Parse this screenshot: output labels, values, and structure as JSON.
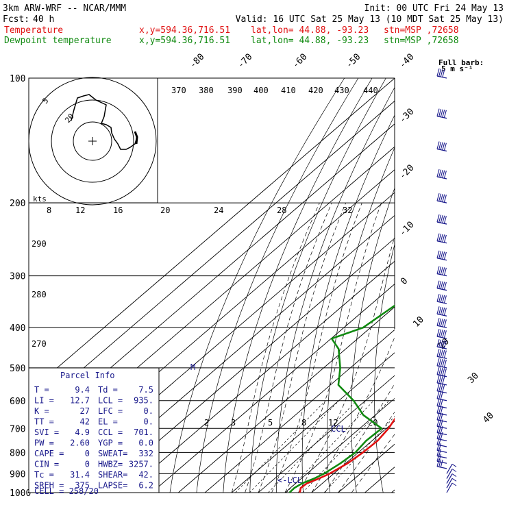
{
  "header": {
    "model": "3km ARW-WRF -- NCAR/MMM",
    "init": "Init: 00 UTC Fri 24 May 13",
    "fcst_label": "Fcst:",
    "fcst_value": "40 h",
    "valid": "Valid: 16 UTC Sat 25 May 13 (10 MDT Sat 25 May 13)"
  },
  "colors": {
    "temperature": "#e01010",
    "dewpoint": "#108a10",
    "index_text": "#1a1a8c",
    "barb": "#1a1a8c"
  },
  "legend": [
    {
      "name": "Temperature",
      "xy": "x,y=594.36,716.51",
      "latlon": "lat,lon= 44.88, -93.23",
      "stn": "stn=MSP ,72658"
    },
    {
      "name": "Dewpoint temperature",
      "xy": "x,y=594.36,716.51",
      "latlon": "lat,lon= 44.88, -93.23",
      "stn": "stn=MSP ,72658"
    }
  ],
  "barb_legend": {
    "title": "Full barb:",
    "value": "5 m s⁻¹"
  },
  "hodograph": {
    "units": "kts",
    "ring_labels": [
      "20",
      "5"
    ]
  },
  "parcel_info": {
    "title": "Parcel Info",
    "rows": [
      [
        "T  =",
        "9.4",
        "Td =",
        "7.5"
      ],
      [
        "LI =",
        "12.7",
        "LCL =",
        "935."
      ],
      [
        "K  =",
        "27",
        "LFC =",
        "0."
      ],
      [
        "TT =",
        "42",
        "EL  =",
        "0."
      ],
      [
        "SVI =",
        "4.9",
        "CCL =",
        "701."
      ],
      [
        "PW =",
        "2.60",
        "YGP =",
        "0.0"
      ],
      [
        "CAPE =",
        "0",
        "SWEAT=",
        "332"
      ],
      [
        "CIN  =",
        "0",
        "HWBZ=",
        "3257."
      ],
      [
        "Tc =",
        "31.4",
        "SHEAR=",
        "42."
      ],
      [
        "SREH =",
        "375",
        "LAPSE=",
        "6.2"
      ]
    ],
    "cell": "CELL = 258/20"
  },
  "level_labels": {
    "ccl": "CCL",
    "lcl": "<-LCL",
    "m": "M"
  },
  "chart_data": {
    "type": "line",
    "title": "",
    "y_axis": {
      "label": "",
      "scale": "log",
      "ticks_hpa": [
        100,
        200,
        300,
        400,
        500,
        600,
        700,
        800,
        900,
        1000
      ]
    },
    "isotherm_labels_c": [
      -80,
      -70,
      -60,
      -50,
      -40,
      -30,
      -20,
      -10,
      0,
      10,
      20,
      30,
      40
    ],
    "dry_adiabat_labels_k": [
      370,
      380,
      390,
      400,
      410,
      420,
      430,
      440,
      290,
      280,
      270
    ],
    "mixing_ratio_labels_upper": [
      8,
      12,
      16,
      20,
      24,
      28,
      32
    ],
    "mixing_ratio_labels_lower": [
      2,
      3,
      5,
      8,
      12,
      20
    ],
    "series": [
      {
        "name": "Temperature",
        "points": [
          [
            1000,
            15.6
          ],
          [
            975,
            13.9
          ],
          [
            950,
            14.2
          ],
          [
            925,
            16.6
          ],
          [
            900,
            18.5
          ],
          [
            850,
            20.7
          ],
          [
            800,
            21.7
          ],
          [
            750,
            22.1
          ],
          [
            700,
            20.8
          ],
          [
            650,
            18.3
          ],
          [
            600,
            14.9
          ],
          [
            550,
            10.5
          ],
          [
            500,
            6.6
          ],
          [
            450,
            1.1
          ],
          [
            400,
            -5.9
          ],
          [
            350,
            -13.8
          ],
          [
            300,
            -22.6
          ],
          [
            275,
            -28.7
          ],
          [
            250,
            -35.0
          ],
          [
            225,
            -40.0
          ],
          [
            200,
            -45.5
          ],
          [
            175,
            -51.2
          ],
          [
            150,
            -57.0
          ],
          [
            125,
            -58.3
          ],
          [
            110,
            -59.3
          ],
          [
            100,
            -60.3
          ]
        ]
      },
      {
        "name": "Dewpoint temperature",
        "points": [
          [
            1000,
            11.7
          ],
          [
            975,
            11.5
          ],
          [
            950,
            12.4
          ],
          [
            925,
            14.8
          ],
          [
            900,
            16.4
          ],
          [
            850,
            18.0
          ],
          [
            800,
            18.9
          ],
          [
            750,
            17.8
          ],
          [
            700,
            18.2
          ],
          [
            650,
            5.5
          ],
          [
            600,
            -4.4
          ],
          [
            550,
            -17.0
          ],
          [
            500,
            -23.8
          ],
          [
            450,
            -32.7
          ],
          [
            425,
            -39.8
          ],
          [
            400,
            -32.8
          ],
          [
            350,
            -30.4
          ],
          [
            300,
            -20.8
          ],
          [
            275,
            -32.3
          ],
          [
            250,
            -45.9
          ],
          [
            225,
            -56.6
          ],
          [
            200,
            -66.4
          ],
          [
            175,
            -69.7
          ],
          [
            150,
            -71.5
          ],
          [
            125,
            -70.0
          ],
          [
            100,
            -70.1
          ]
        ]
      }
    ],
    "wind_barbs": {
      "units": "m s-1",
      "levels": [
        {
          "p": 1000,
          "count": 7
        },
        {
          "p": 900,
          "count": 10
        },
        {
          "p": 800,
          "count": 8
        },
        {
          "p": 700,
          "count": 12
        },
        {
          "p": 600,
          "count": 12
        },
        {
          "p": 500,
          "count": 22
        },
        {
          "p": 400,
          "count": 22
        },
        {
          "p": 300,
          "count": 22
        },
        {
          "p": 200,
          "count": 22
        },
        {
          "p": 100,
          "count": 16
        }
      ]
    }
  }
}
